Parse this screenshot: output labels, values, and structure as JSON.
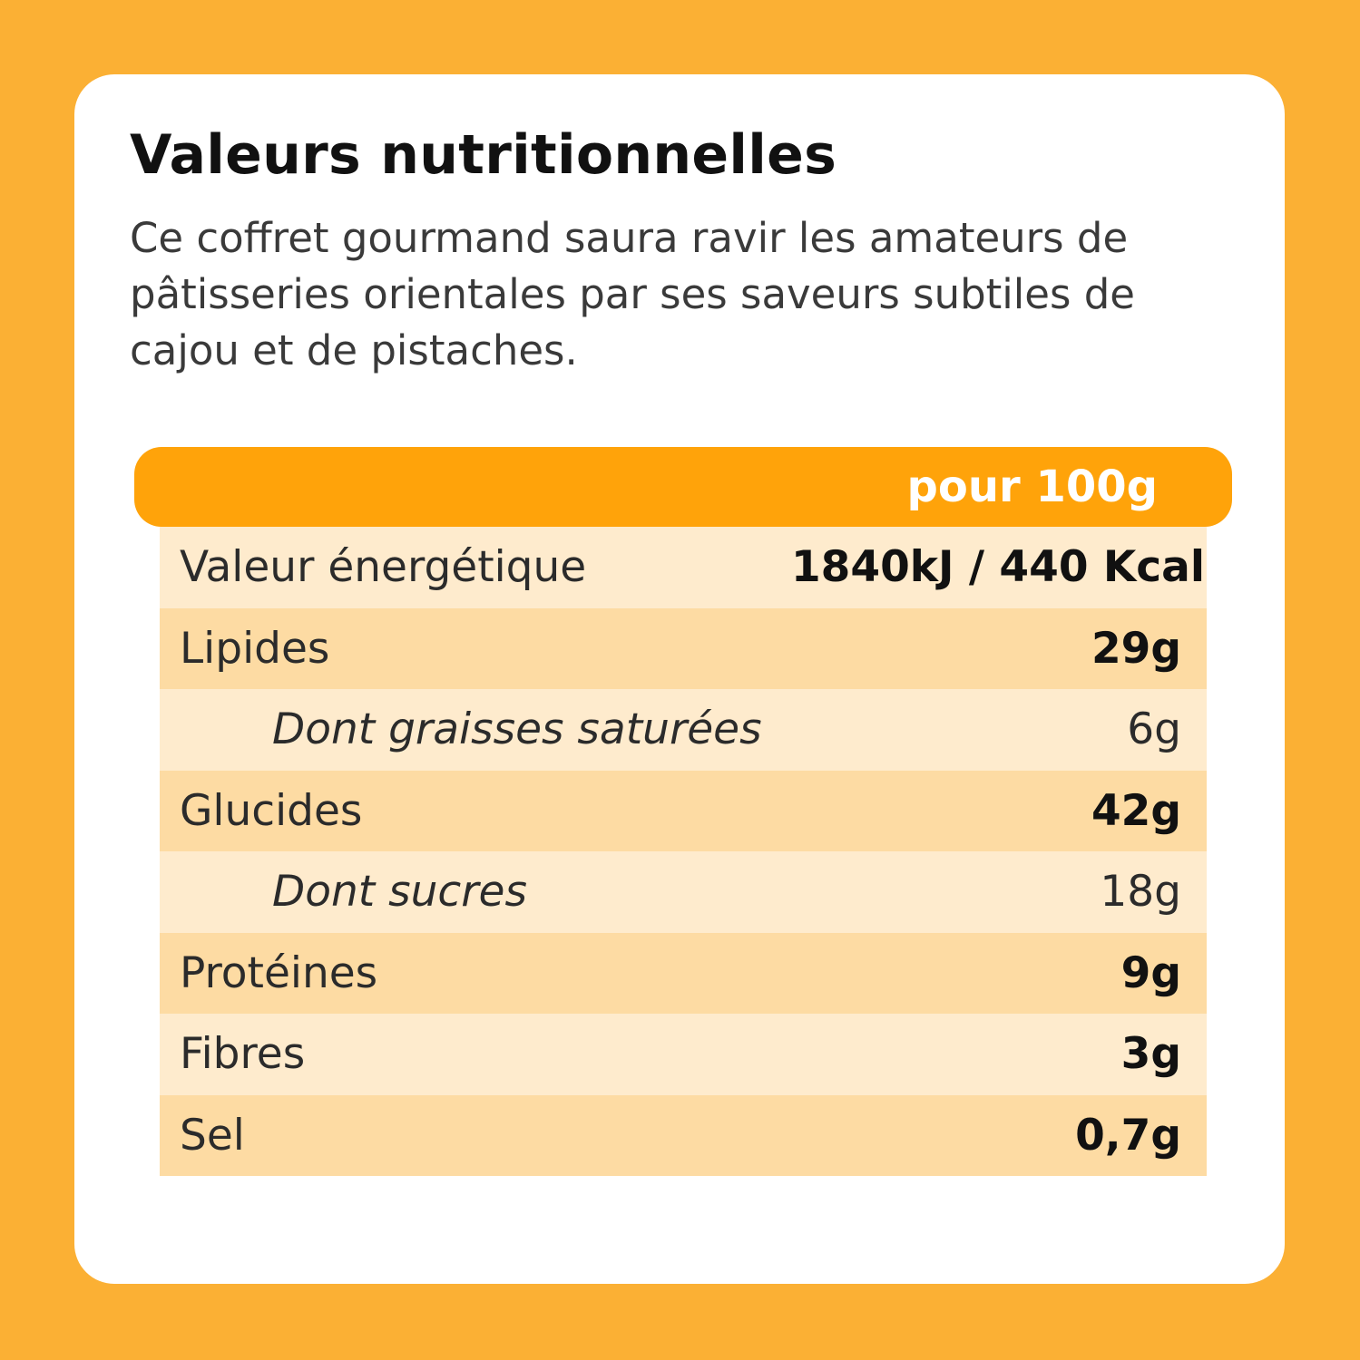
{
  "title": "Valeurs nutritionnelles",
  "description": "Ce coffret gourmand saura ravir les amateurs de pâtisseries orientales par ses saveurs subtiles de cajou et de pistaches.",
  "table": {
    "header": "pour 100g",
    "rows": [
      {
        "label": "Valeur énergétique",
        "value": "1840kJ / 440 Kcal"
      },
      {
        "label": "Lipides",
        "value": "29g"
      },
      {
        "label": "Dont graisses saturées",
        "value": "6g"
      },
      {
        "label": "Glucides",
        "value": "42g"
      },
      {
        "label": "Dont sucres",
        "value": "18g"
      },
      {
        "label": "Protéines",
        "value": "9g"
      },
      {
        "label": "Fibres",
        "value": "3g"
      },
      {
        "label": "Sel",
        "value": "0,7g"
      }
    ]
  },
  "colors": {
    "background": "#FBB034",
    "header_bar": "#FFA30A",
    "row_light": "#FEEBCD",
    "row_dark": "#FDDBA3"
  }
}
